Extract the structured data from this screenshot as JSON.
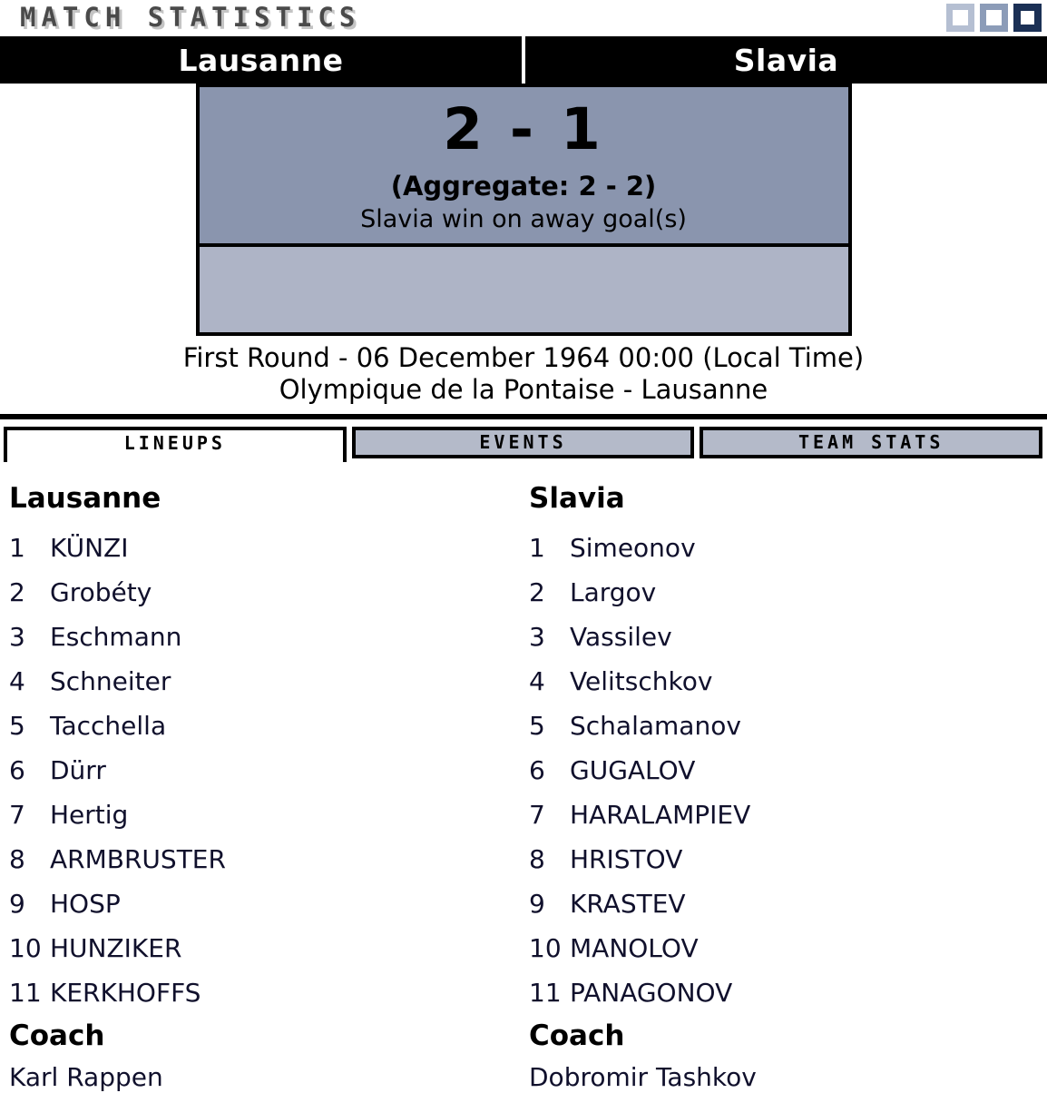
{
  "header": {
    "title": "MATCH STATISTICS",
    "window_squares": [
      {
        "name": "square-light",
        "color": "#b5bfd2"
      },
      {
        "name": "square-medium",
        "color": "#8c9cb8"
      },
      {
        "name": "square-dark",
        "color": "#1b3055"
      }
    ]
  },
  "team_bar": {
    "home": "Lausanne",
    "away": "Slavia"
  },
  "scoreboard": {
    "score": "2 - 1",
    "aggregate": "(Aggregate: 2 - 2)",
    "note": "Slavia win on away goal(s)"
  },
  "match_info": {
    "line1": "First Round - 06 December 1964 00:00 (Local Time)",
    "line2": "Olympique de la Pontaise - Lausanne"
  },
  "tabs": [
    {
      "label": "LINEUPS",
      "active": true
    },
    {
      "label": "EVENTS",
      "active": false
    },
    {
      "label": "TEAM STATS",
      "active": false
    }
  ],
  "lineups": {
    "home": {
      "team": "Lausanne",
      "players": [
        {
          "num": "1",
          "name": "KÜNZI"
        },
        {
          "num": "2",
          "name": "Grobéty"
        },
        {
          "num": "3",
          "name": "Eschmann"
        },
        {
          "num": "4",
          "name": "Schneiter"
        },
        {
          "num": "5",
          "name": "Tacchella"
        },
        {
          "num": "6",
          "name": "Dürr"
        },
        {
          "num": "7",
          "name": "Hertig"
        },
        {
          "num": "8",
          "name": "ARMBRUSTER"
        },
        {
          "num": "9",
          "name": "HOSP"
        },
        {
          "num": "10",
          "name": "HUNZIKER"
        },
        {
          "num": "11",
          "name": "KERKHOFFS"
        }
      ],
      "coach_label": "Coach",
      "coach": "Karl Rappen"
    },
    "away": {
      "team": "Slavia",
      "players": [
        {
          "num": "1",
          "name": "Simeonov"
        },
        {
          "num": "2",
          "name": "Largov"
        },
        {
          "num": "3",
          "name": "Vassilev"
        },
        {
          "num": "4",
          "name": "Velitschkov"
        },
        {
          "num": "5",
          "name": "Schalamanov"
        },
        {
          "num": "6",
          "name": "GUGALOV"
        },
        {
          "num": "7",
          "name": "HARALAMPIEV"
        },
        {
          "num": "8",
          "name": "HRISTOV"
        },
        {
          "num": "9",
          "name": "KRASTEV"
        },
        {
          "num": "10",
          "name": "MANOLOV"
        },
        {
          "num": "11",
          "name": "PANAGONOV"
        }
      ],
      "coach_label": "Coach",
      "coach": "Dobromir Tashkov"
    }
  },
  "colors": {
    "score_box_bg": "#8a95ae",
    "score_panel_bg": "#aeb4c6",
    "tab_inactive_bg": "#b4bac9",
    "tab_active_bg": "#ffffff",
    "team_bar_bg": "#000000",
    "team_bar_text": "#ffffff",
    "title_color": "#4a4a4a",
    "body_text": "#10102c"
  }
}
